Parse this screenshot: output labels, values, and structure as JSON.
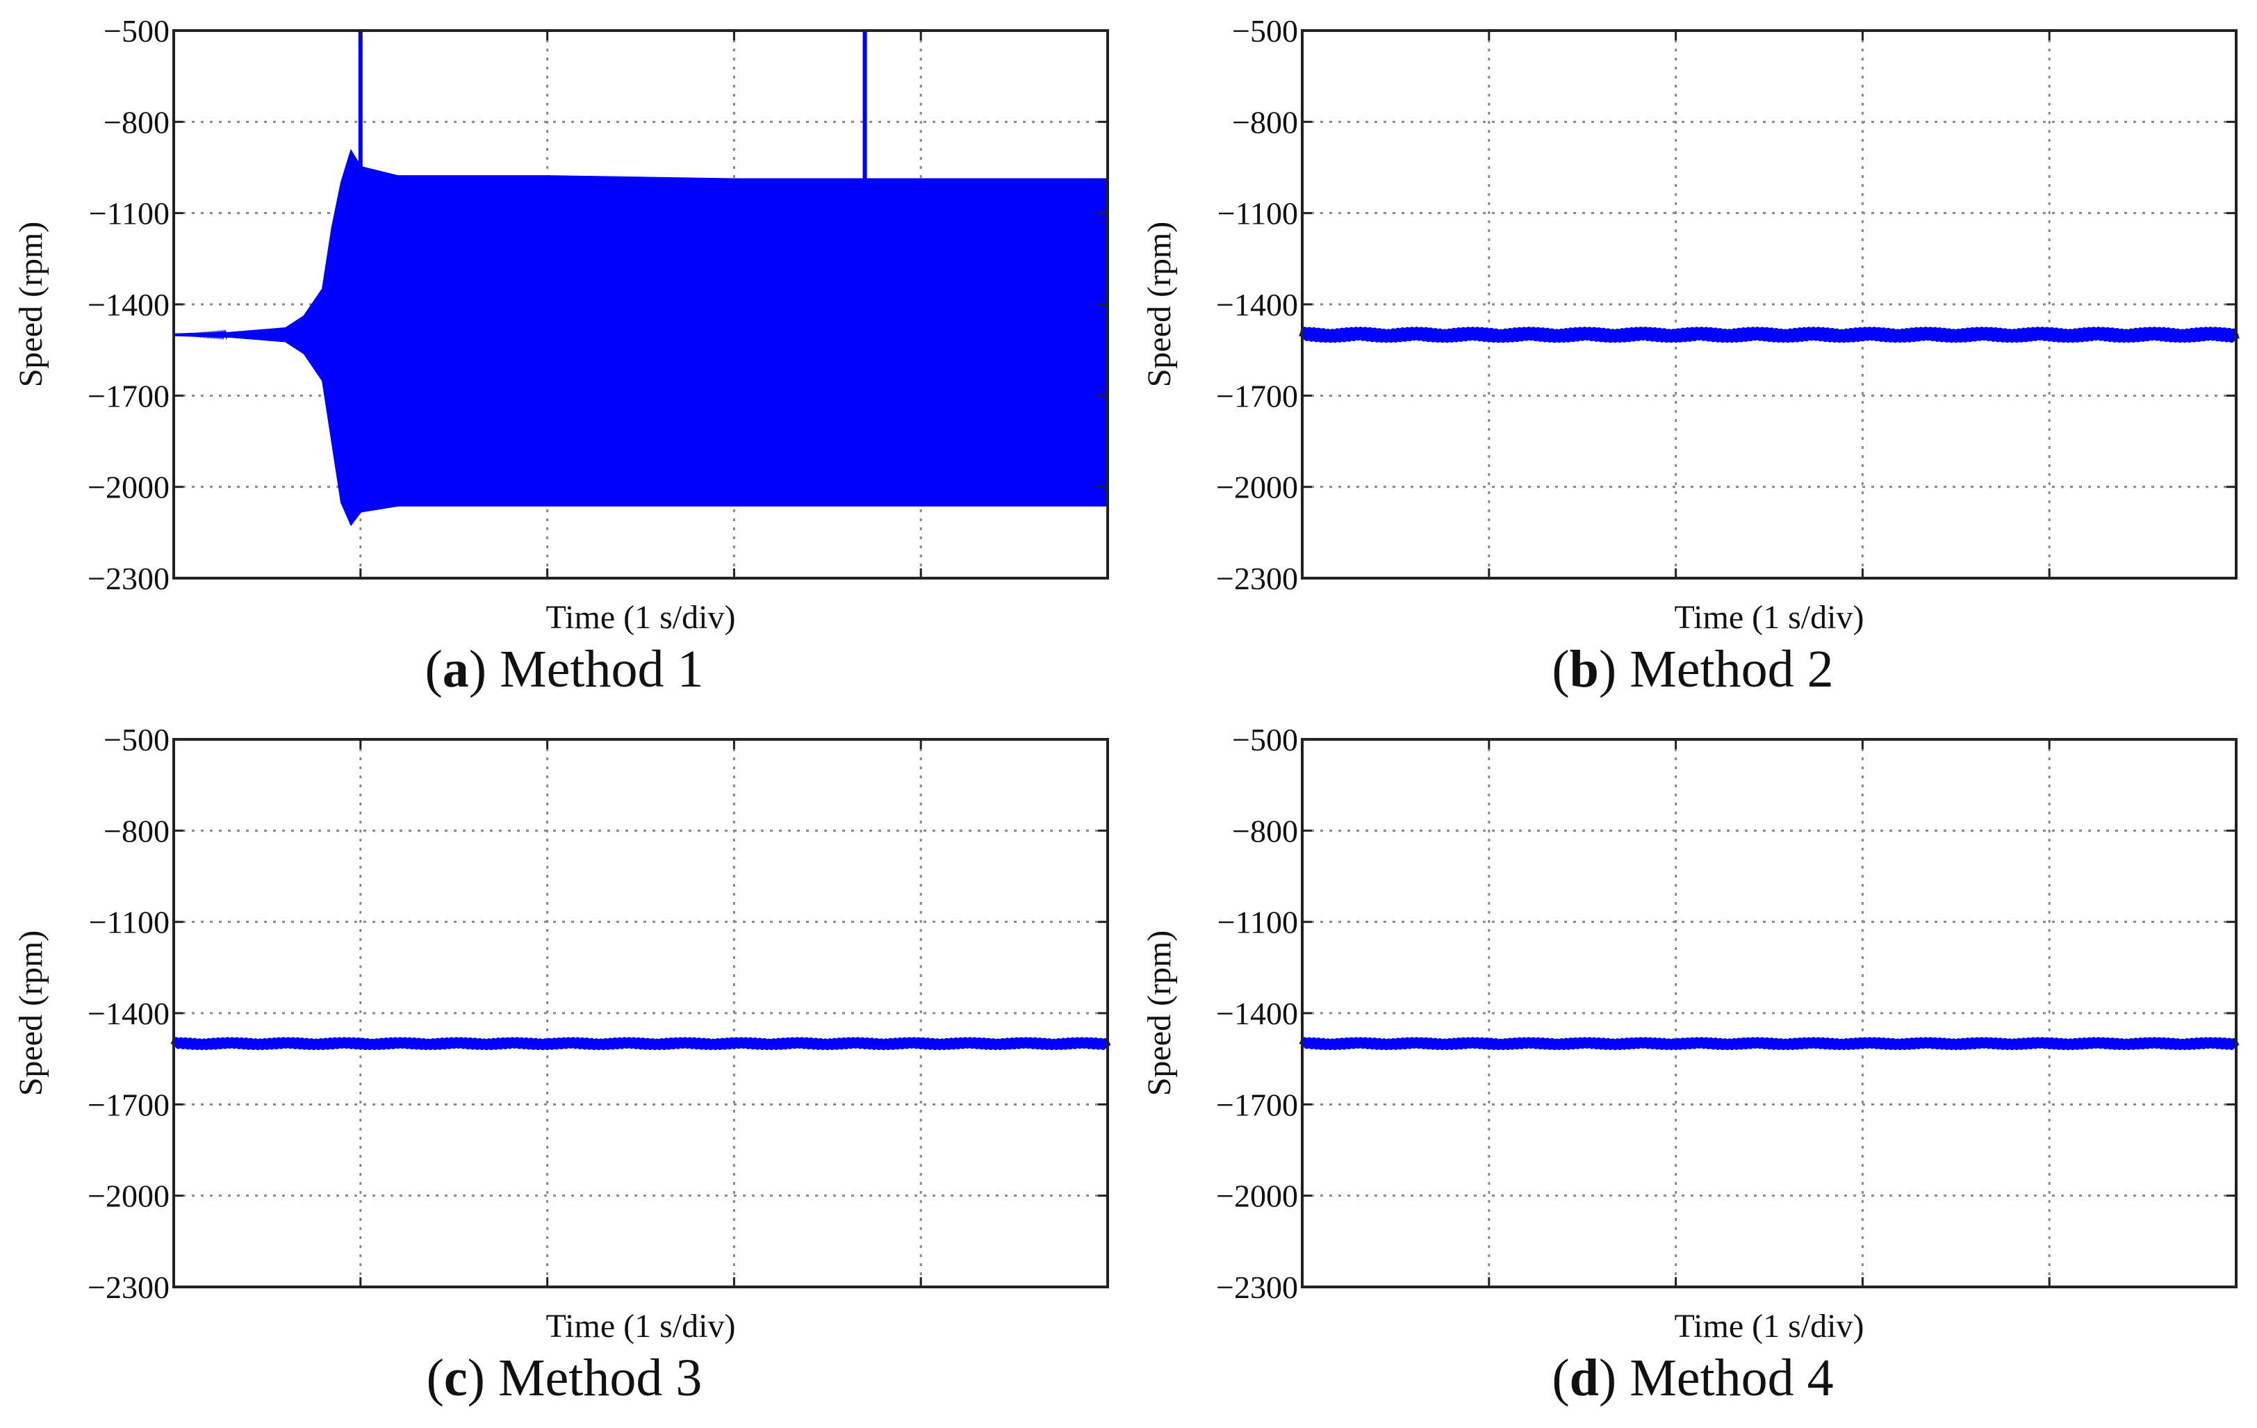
{
  "figure": {
    "panels": [
      {
        "letter": "a",
        "caption_text": "Method 1"
      },
      {
        "letter": "b",
        "caption_text": "Method 2"
      },
      {
        "letter": "c",
        "caption_text": "Method 3"
      },
      {
        "letter": "d",
        "caption_text": "Method 4"
      }
    ]
  },
  "style": {
    "series_color": "#0000ff",
    "grid_color": "#888888",
    "axis_color": "#222222"
  },
  "chart_data": [
    {
      "type": "line",
      "panel": "a",
      "title": "",
      "xlabel": "Time (1 s/div)",
      "ylabel": "Speed (rpm)",
      "ylim": [
        -2300,
        -500
      ],
      "yticks": [
        -500,
        -800,
        -1100,
        -1400,
        -1700,
        -2000,
        -2300
      ],
      "ytick_labels": [
        "−500",
        "−800",
        "−1100",
        "−1400",
        "−1700",
        "−2000",
        "−2300"
      ],
      "xlim": [
        0,
        5
      ],
      "x_divisions": 5,
      "grid": true,
      "series": [
        {
          "description_free": true,
          "envelope": {
            "x": [
              0,
              0.3,
              0.6,
              0.7,
              0.8,
              0.85,
              0.9,
              0.95,
              1.0,
              1.2,
              2.0,
              3.0,
              4.0,
              5.0
            ],
            "upper": [
              -1500,
              -1495,
              -1480,
              -1440,
              -1350,
              -1150,
              -1000,
              -900,
              -950,
              -980,
              -980,
              -990,
              -990,
              -990
            ],
            "lower": [
              -1500,
              -1505,
              -1520,
              -1560,
              -1650,
              -1850,
              -2050,
              -2120,
              -2080,
              -2060,
              -2060,
              -2060,
              -2060,
              -2060
            ]
          },
          "spikes": [
            {
              "x": 1.0,
              "from": -950,
              "to": -500
            },
            {
              "x": 3.7,
              "from": -990,
              "to": -500
            }
          ]
        }
      ]
    },
    {
      "type": "line",
      "panel": "b",
      "title": "",
      "xlabel": "Time (1 s/div)",
      "ylabel": "Speed (rpm)",
      "ylim": [
        -2300,
        -500
      ],
      "yticks": [
        -500,
        -800,
        -1100,
        -1400,
        -1700,
        -2000,
        -2300
      ],
      "ytick_labels": [
        "−500",
        "−800",
        "−1100",
        "−1400",
        "−1700",
        "−2000",
        "−2300"
      ],
      "xlim": [
        0,
        5
      ],
      "x_divisions": 5,
      "grid": true,
      "series": [
        {
          "x": [
            0,
            5
          ],
          "y": [
            -1500,
            -1500
          ],
          "ripple": 15
        }
      ]
    },
    {
      "type": "line",
      "panel": "c",
      "title": "",
      "xlabel": "Time (1 s/div)",
      "ylabel": "Speed (rpm)",
      "ylim": [
        -2300,
        -500
      ],
      "yticks": [
        -500,
        -800,
        -1100,
        -1400,
        -1700,
        -2000,
        -2300
      ],
      "ytick_labels": [
        "−500",
        "−800",
        "−1100",
        "−1400",
        "−1700",
        "−2000",
        "−2300"
      ],
      "xlim": [
        0,
        5
      ],
      "x_divisions": 5,
      "grid": true,
      "series": [
        {
          "x": [
            0,
            5
          ],
          "y": [
            -1500,
            -1500
          ],
          "ripple": 10
        }
      ]
    },
    {
      "type": "line",
      "panel": "d",
      "title": "",
      "xlabel": "Time (1 s/div)",
      "ylabel": "Speed (rpm)",
      "ylim": [
        -2300,
        -500
      ],
      "yticks": [
        -500,
        -800,
        -1100,
        -1400,
        -1700,
        -2000,
        -2300
      ],
      "ytick_labels": [
        "−500",
        "−800",
        "−1100",
        "−1400",
        "−1700",
        "−2000",
        "−2300"
      ],
      "xlim": [
        0,
        5
      ],
      "x_divisions": 5,
      "grid": true,
      "series": [
        {
          "x": [
            0,
            5
          ],
          "y": [
            -1500,
            -1500
          ],
          "ripple": 10
        }
      ]
    }
  ]
}
